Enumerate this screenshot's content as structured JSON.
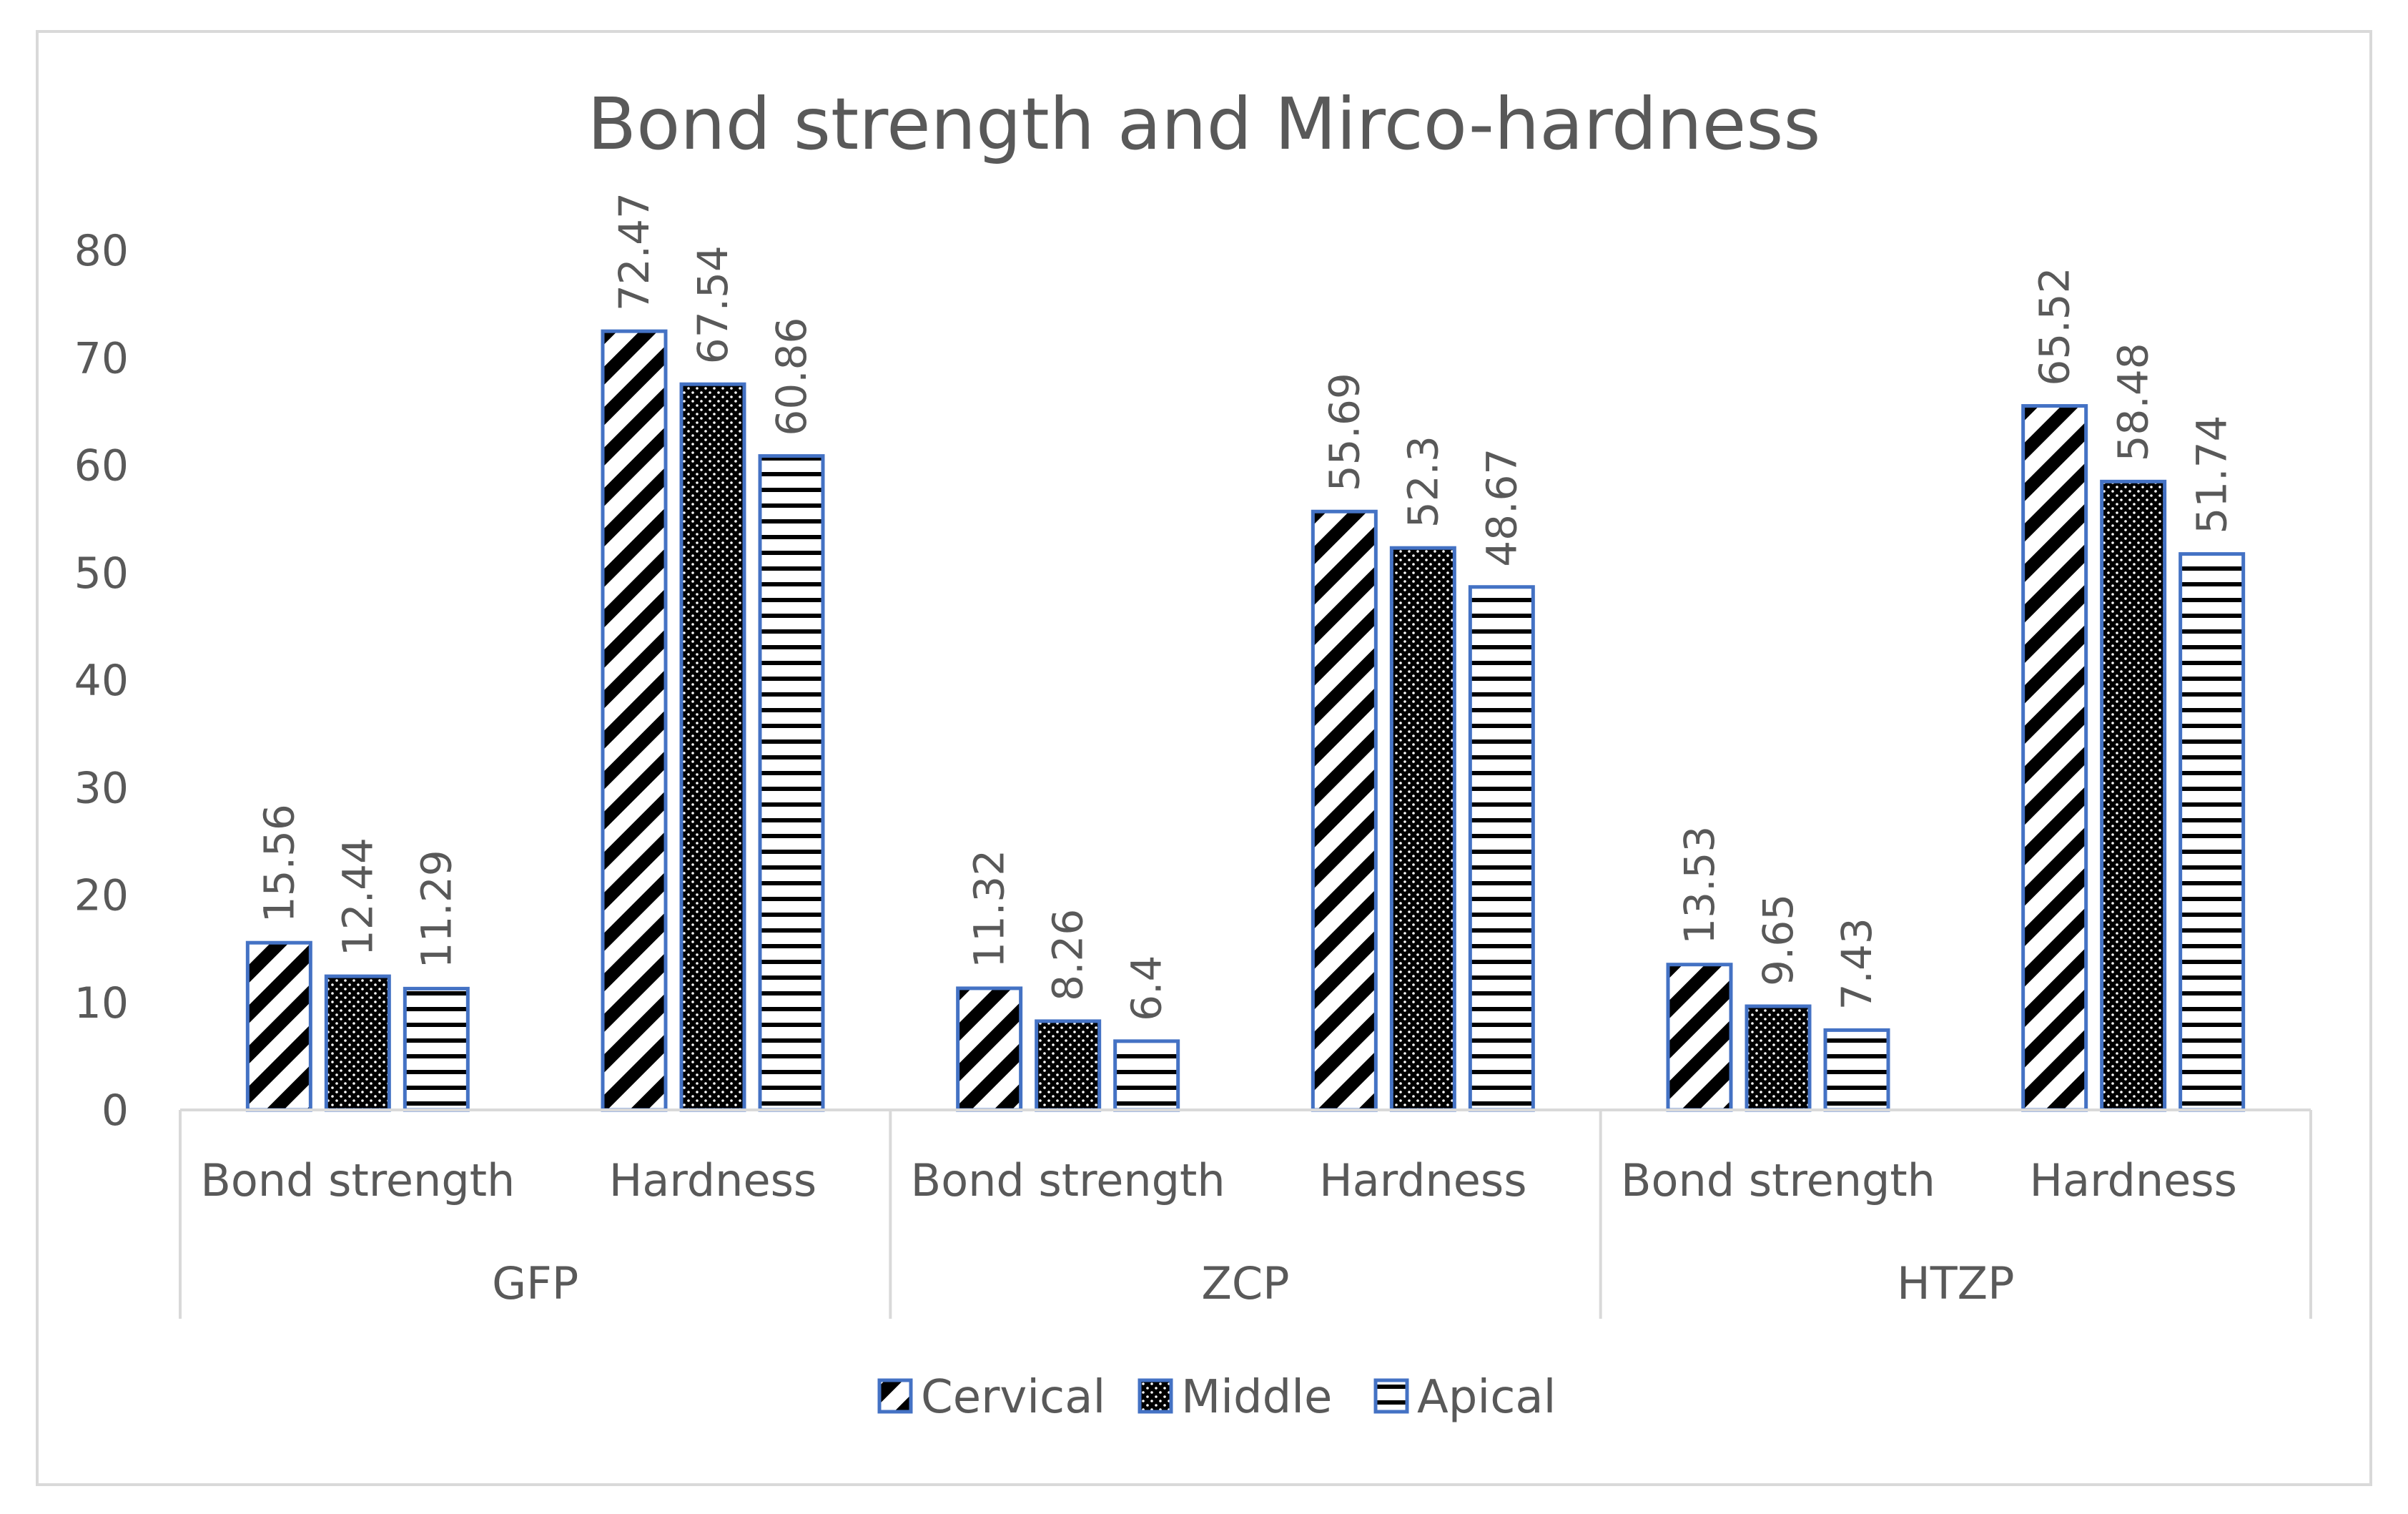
{
  "chart_data": {
    "type": "bar",
    "title": "Bond strength and Mirco-hardness",
    "xlabel": "",
    "ylabel": "",
    "ylim": [
      0,
      80
    ],
    "yticks": [
      "0",
      "10",
      "20",
      "30",
      "40",
      "50",
      "60",
      "70",
      "80"
    ],
    "grid": false,
    "legend_position": "bottom",
    "groups": [
      {
        "name": "GFP",
        "categories": [
          "Bond strength",
          "Hardness"
        ]
      },
      {
        "name": "ZCP",
        "categories": [
          "Bond strength",
          "Hardness"
        ]
      },
      {
        "name": "HTZP",
        "categories": [
          "Bond strength",
          "Hardness"
        ]
      }
    ],
    "categories": [
      "GFP Bond strength",
      "GFP Hardness",
      "ZCP Bond strength",
      "ZCP Hardness",
      "HTZP Bond strength",
      "HTZP Hardness"
    ],
    "series": [
      {
        "name": "Cervical",
        "pattern": "diagonal",
        "values": [
          15.56,
          72.47,
          11.32,
          55.69,
          13.53,
          65.52
        ],
        "labels": [
          "15.56",
          "72.47",
          "11.32",
          "55.69",
          "13.53",
          "65.52"
        ]
      },
      {
        "name": "Middle",
        "pattern": "dotted",
        "values": [
          12.44,
          67.54,
          8.26,
          52.3,
          9.65,
          58.48
        ],
        "labels": [
          "12.44",
          "67.54",
          "8.26",
          "52.3",
          "9.65",
          "58.48"
        ]
      },
      {
        "name": "Apical",
        "pattern": "horizontal",
        "values": [
          11.29,
          60.86,
          6.4,
          48.67,
          7.43,
          51.74
        ],
        "labels": [
          "11.29",
          "60.86",
          "6.4",
          "48.67",
          "7.43",
          "51.74"
        ]
      }
    ],
    "colors": {
      "bar_outline": "#4472c4",
      "pattern": "#000000",
      "axis": "#d9d9d9",
      "text": "#595959",
      "border": "#d9d9d9"
    }
  }
}
